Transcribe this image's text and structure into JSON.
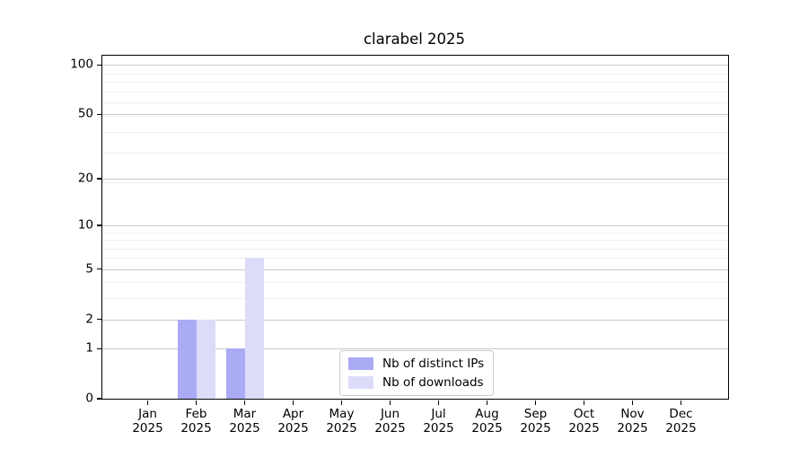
{
  "figure": {
    "background": "#ffffff"
  },
  "chart_data": {
    "type": "bar",
    "title": "clarabel 2025",
    "categories": [
      {
        "month": "Jan",
        "year": "2025"
      },
      {
        "month": "Feb",
        "year": "2025"
      },
      {
        "month": "Mar",
        "year": "2025"
      },
      {
        "month": "Apr",
        "year": "2025"
      },
      {
        "month": "May",
        "year": "2025"
      },
      {
        "month": "Jun",
        "year": "2025"
      },
      {
        "month": "Jul",
        "year": "2025"
      },
      {
        "month": "Aug",
        "year": "2025"
      },
      {
        "month": "Sep",
        "year": "2025"
      },
      {
        "month": "Oct",
        "year": "2025"
      },
      {
        "month": "Nov",
        "year": "2025"
      },
      {
        "month": "Dec",
        "year": "2025"
      }
    ],
    "series": [
      {
        "name": "Nb of distinct IPs",
        "color": "#aaaaf5",
        "values": [
          0,
          2,
          1,
          0,
          0,
          0,
          0,
          0,
          0,
          0,
          0,
          0
        ]
      },
      {
        "name": "Nb of downloads",
        "color": "#dcdcf9",
        "values": [
          0,
          2,
          6,
          0,
          0,
          0,
          0,
          0,
          0,
          0,
          0,
          0
        ]
      }
    ],
    "yscale": "log1p",
    "ylim": [
      0,
      114
    ],
    "ytick_values": [
      0,
      1,
      2,
      5,
      10,
      20,
      50,
      100
    ],
    "ytick_labels": [
      "0",
      "1",
      "2",
      "5",
      "10",
      "20",
      "50",
      "100"
    ],
    "minor_ytick_values": [
      3,
      4,
      6,
      7,
      8,
      9,
      19,
      29,
      39,
      49,
      59,
      69,
      79,
      89
    ],
    "grid": true,
    "legend_position": "bottom-center",
    "colors": {
      "major_grid": "#c9c9c9",
      "minor_grid": "#efefef",
      "spine": "#000000",
      "text": "#000000",
      "legend_border": "#cccccc",
      "legend_background": "#ffffff"
    }
  }
}
